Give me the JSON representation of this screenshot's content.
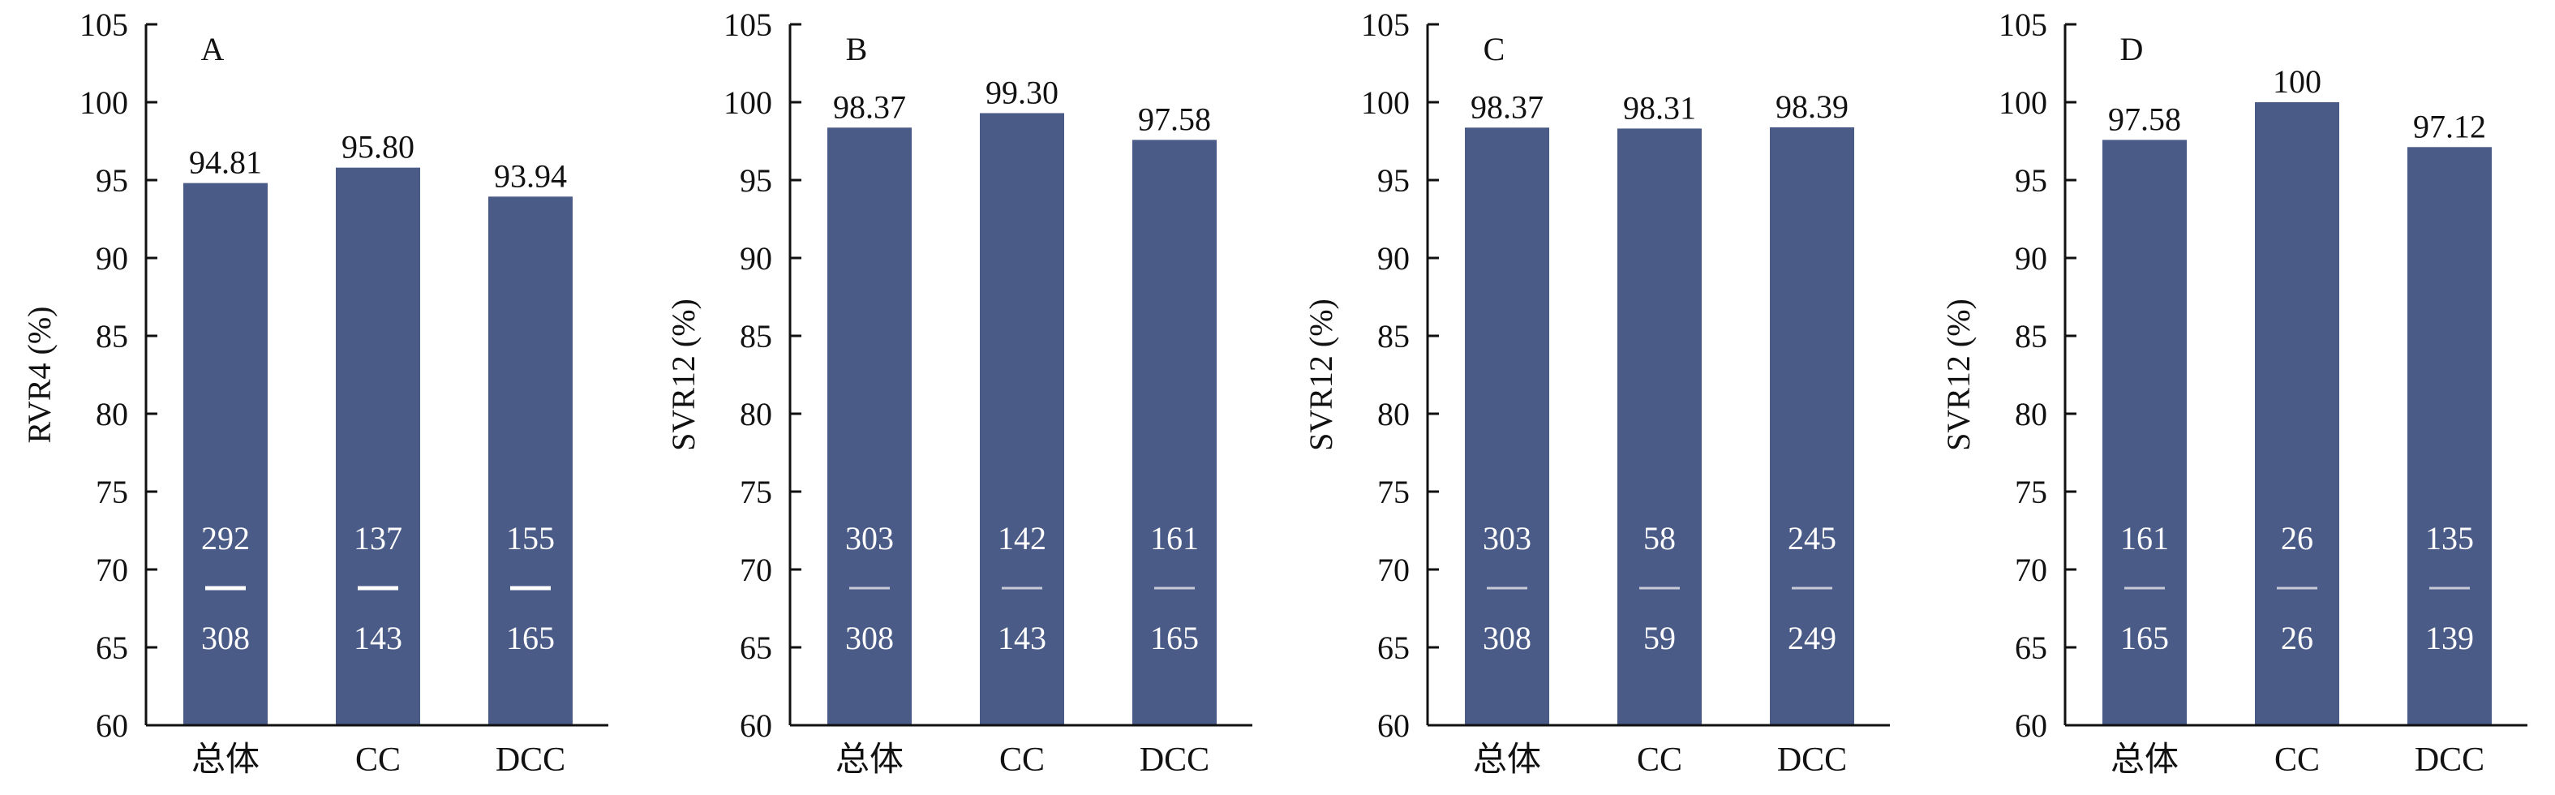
{
  "chart_data": [
    {
      "type": "bar",
      "panel_label": "A",
      "ylabel": "RVR4 (%)",
      "ylim": [
        60,
        105
      ],
      "yticks": [
        "60",
        "65",
        "70",
        "75",
        "80",
        "85",
        "90",
        "95",
        "100",
        "105"
      ],
      "categories": [
        "总体",
        "CC",
        "DCC"
      ],
      "values": [
        94.81,
        95.8,
        93.94
      ],
      "value_labels": [
        "94.81",
        "95.80",
        "93.94"
      ],
      "numerators": [
        "292",
        "137",
        "155"
      ],
      "denominators": [
        "308",
        "143",
        "165"
      ]
    },
    {
      "type": "bar",
      "panel_label": "B",
      "ylabel": "SVR12 (%)",
      "ylim": [
        60,
        105
      ],
      "yticks": [
        "60",
        "65",
        "70",
        "75",
        "80",
        "85",
        "90",
        "95",
        "100",
        "105"
      ],
      "categories": [
        "总体",
        "CC",
        "DCC"
      ],
      "values": [
        98.37,
        99.3,
        97.58
      ],
      "value_labels": [
        "98.37",
        "99.30",
        "97.58"
      ],
      "numerators": [
        "303",
        "142",
        "161"
      ],
      "denominators": [
        "308",
        "143",
        "165"
      ]
    },
    {
      "type": "bar",
      "panel_label": "C",
      "ylabel": "SVR12 (%)",
      "ylim": [
        60,
        105
      ],
      "yticks": [
        "60",
        "65",
        "70",
        "75",
        "80",
        "85",
        "90",
        "95",
        "100",
        "105"
      ],
      "categories": [
        "总体",
        "CC",
        "DCC"
      ],
      "values": [
        98.37,
        98.31,
        98.39
      ],
      "value_labels": [
        "98.37",
        "98.31",
        "98.39"
      ],
      "numerators": [
        "303",
        "58",
        "245"
      ],
      "denominators": [
        "308",
        "59",
        "249"
      ]
    },
    {
      "type": "bar",
      "panel_label": "D",
      "ylabel": "SVR12 (%)",
      "ylim": [
        60,
        105
      ],
      "yticks": [
        "60",
        "65",
        "70",
        "75",
        "80",
        "85",
        "90",
        "95",
        "100",
        "105"
      ],
      "categories": [
        "总体",
        "CC",
        "DCC"
      ],
      "values": [
        97.58,
        100,
        97.12
      ],
      "value_labels": [
        "97.58",
        "100",
        "97.12"
      ],
      "numerators": [
        "161",
        "26",
        "135"
      ],
      "denominators": [
        "165",
        "26",
        "139"
      ]
    }
  ],
  "colors": {
    "bar": "#4a5b88",
    "axis": "#111111",
    "text": "#111111",
    "inner_text": "#ffffff"
  }
}
